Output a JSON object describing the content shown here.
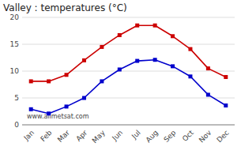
{
  "chart_data": {
    "type": "line",
    "title": "Valley : temperatures (°C)",
    "categories": [
      "Jan",
      "Feb",
      "Mar",
      "Apr",
      "May",
      "Jun",
      "Jul",
      "Aug",
      "Sep",
      "Oct",
      "Nov",
      "Dec"
    ],
    "series": [
      {
        "color": "#cc0000",
        "values": [
          8.1,
          8.1,
          9.3,
          12.0,
          14.5,
          16.7,
          18.5,
          18.5,
          16.5,
          14.1,
          10.5,
          8.9
        ]
      },
      {
        "color": "#0000cc",
        "values": [
          2.9,
          2.1,
          3.4,
          5.0,
          8.1,
          10.3,
          11.9,
          12.1,
          10.9,
          9.0,
          5.6,
          3.6
        ]
      }
    ],
    "ylim": [
      0,
      20
    ],
    "yticks": [
      0,
      5,
      10,
      15,
      20
    ],
    "grid": true,
    "marker": "square",
    "annotations": [
      "www.allmetsat.com"
    ]
  }
}
